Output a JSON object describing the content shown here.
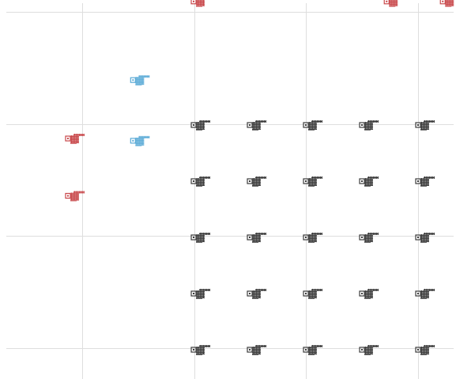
{
  "board": {
    "background": "#ffffff",
    "grid_color": "#dedede",
    "grid": {
      "columns": 5,
      "rows": 4
    }
  },
  "palette": {
    "enemy": "#c8474a",
    "ally": "#5aaad6",
    "neutral": "#3c3c3c"
  },
  "sprite_icon": "pointing-hand-sprite",
  "sprites": [
    {
      "kind": "enemy",
      "col": 1,
      "row": 0.9
    },
    {
      "kind": "enemy",
      "col": 2.72,
      "row": 0.9
    },
    {
      "kind": "enemy",
      "col": 3.22,
      "row": 0.9
    },
    {
      "kind": "enemy",
      "col": 4.0,
      "row": 0.9
    },
    {
      "kind": "ally",
      "col": 0.46,
      "row": 1.6
    },
    {
      "kind": "ally",
      "col": 0.46,
      "row": 2.14
    },
    {
      "kind": "enemy",
      "col": -0.12,
      "row": 2.12
    },
    {
      "kind": "enemy",
      "col": -0.12,
      "row": 2.63
    },
    {
      "kind": "neutral",
      "col": 1,
      "row": 2
    },
    {
      "kind": "neutral",
      "col": 1.5,
      "row": 2
    },
    {
      "kind": "neutral",
      "col": 2,
      "row": 2
    },
    {
      "kind": "neutral",
      "col": 2.5,
      "row": 2
    },
    {
      "kind": "neutral",
      "col": 3,
      "row": 2
    },
    {
      "kind": "neutral",
      "col": 1,
      "row": 2.5
    },
    {
      "kind": "neutral",
      "col": 1.5,
      "row": 2.5
    },
    {
      "kind": "neutral",
      "col": 2,
      "row": 2.5
    },
    {
      "kind": "neutral",
      "col": 2.5,
      "row": 2.5
    },
    {
      "kind": "neutral",
      "col": 3,
      "row": 2.5
    },
    {
      "kind": "neutral",
      "col": 1,
      "row": 3
    },
    {
      "kind": "neutral",
      "col": 1.5,
      "row": 3
    },
    {
      "kind": "neutral",
      "col": 2,
      "row": 3
    },
    {
      "kind": "neutral",
      "col": 2.5,
      "row": 3
    },
    {
      "kind": "neutral",
      "col": 3,
      "row": 3
    },
    {
      "kind": "neutral",
      "col": 1,
      "row": 3.5
    },
    {
      "kind": "neutral",
      "col": 1.5,
      "row": 3.5
    },
    {
      "kind": "neutral",
      "col": 2,
      "row": 3.5
    },
    {
      "kind": "neutral",
      "col": 2.5,
      "row": 3.5
    },
    {
      "kind": "neutral",
      "col": 3,
      "row": 3.5
    },
    {
      "kind": "neutral",
      "col": 1,
      "row": 4
    },
    {
      "kind": "neutral",
      "col": 1.5,
      "row": 4
    },
    {
      "kind": "neutral",
      "col": 2,
      "row": 4
    },
    {
      "kind": "neutral",
      "col": 2.5,
      "row": 4
    },
    {
      "kind": "neutral",
      "col": 3,
      "row": 4
    }
  ]
}
